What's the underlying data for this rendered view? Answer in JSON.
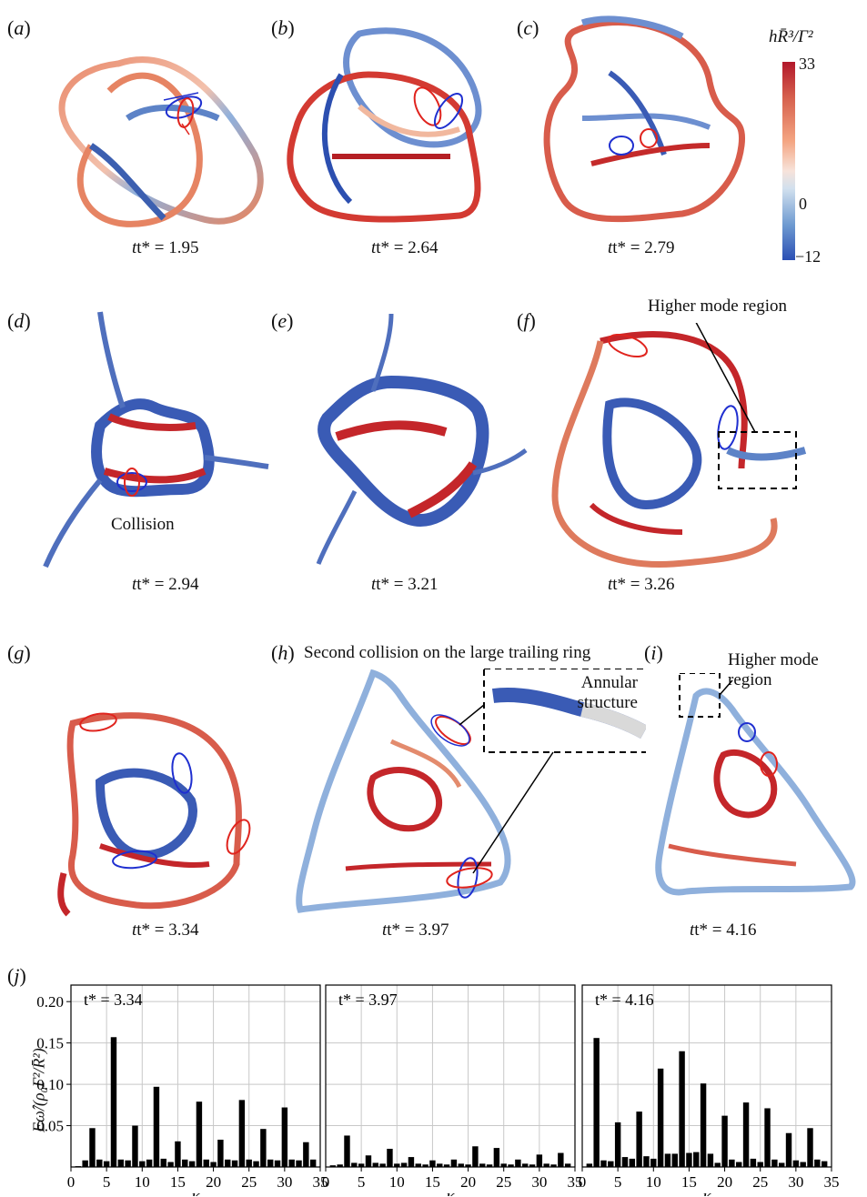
{
  "colorbar": {
    "title": "hR̄³/Γ²",
    "max": "33",
    "mid": "0",
    "min": "−12",
    "colors": [
      "#b2182b",
      "#f4a582",
      "#f7e3da",
      "#6f9bd1",
      "#2b4fb4"
    ]
  },
  "panels": [
    {
      "label": "a",
      "time": "1.95"
    },
    {
      "label": "b",
      "time": "2.64"
    },
    {
      "label": "c",
      "time": "2.79"
    },
    {
      "label": "d",
      "time": "2.94"
    },
    {
      "label": "e",
      "time": "3.21"
    },
    {
      "label": "f",
      "time": "3.26"
    },
    {
      "label": "g",
      "time": "3.34"
    },
    {
      "label": "h",
      "time": "3.97"
    },
    {
      "label": "i",
      "time": "4.16"
    }
  ],
  "time_prefix": "t* = ",
  "annotations": {
    "collision": "Collision",
    "higher_mode_f": "Higher mode region",
    "second_collision": "Second collision on the large trailing ring",
    "annular": [
      "Annular",
      "structure"
    ],
    "higher_mode_i": [
      "Higher mode",
      "region"
    ]
  },
  "spectra_label": "j",
  "chart_data": [
    {
      "type": "bar",
      "title": "t* = 3.34",
      "xlabel": "κ",
      "ylabel": "Eω̂/(ρ₀Γ²/R̄²)",
      "xlim": [
        0,
        35
      ],
      "ylim": [
        0,
        0.22
      ],
      "xticks": [
        0,
        5,
        10,
        15,
        20,
        25,
        30,
        35
      ],
      "yticks": [
        0.05,
        0.1,
        0.15,
        0.2
      ],
      "ytick_labels": [
        "0.05",
        "0.10",
        "0.15",
        "0.20"
      ],
      "grid": true,
      "x": [
        1,
        2,
        3,
        4,
        5,
        6,
        7,
        8,
        9,
        10,
        11,
        12,
        13,
        14,
        15,
        16,
        17,
        18,
        19,
        20,
        21,
        22,
        23,
        24,
        25,
        26,
        27,
        28,
        29,
        30,
        31,
        32,
        33,
        34
      ],
      "values": [
        0.001,
        0.008,
        0.047,
        0.009,
        0.007,
        0.157,
        0.009,
        0.008,
        0.05,
        0.007,
        0.009,
        0.097,
        0.01,
        0.006,
        0.031,
        0.009,
        0.007,
        0.079,
        0.009,
        0.006,
        0.033,
        0.009,
        0.008,
        0.081,
        0.009,
        0.007,
        0.046,
        0.009,
        0.008,
        0.072,
        0.009,
        0.008,
        0.03,
        0.009
      ]
    },
    {
      "type": "bar",
      "title": "t* = 3.97",
      "xlabel": "κ",
      "xlim": [
        0,
        35
      ],
      "ylim": [
        0,
        0.22
      ],
      "xticks": [
        0,
        5,
        10,
        15,
        20,
        25,
        30,
        35
      ],
      "grid": true,
      "x": [
        1,
        2,
        3,
        4,
        5,
        6,
        7,
        8,
        9,
        10,
        11,
        12,
        13,
        14,
        15,
        16,
        17,
        18,
        19,
        20,
        21,
        22,
        23,
        24,
        25,
        26,
        27,
        28,
        29,
        30,
        31,
        32,
        33,
        34
      ],
      "values": [
        0.002,
        0.003,
        0.038,
        0.005,
        0.004,
        0.014,
        0.005,
        0.004,
        0.022,
        0.004,
        0.005,
        0.012,
        0.004,
        0.003,
        0.008,
        0.004,
        0.003,
        0.009,
        0.004,
        0.003,
        0.025,
        0.004,
        0.003,
        0.023,
        0.004,
        0.003,
        0.009,
        0.004,
        0.003,
        0.015,
        0.004,
        0.003,
        0.017,
        0.004
      ]
    },
    {
      "type": "bar",
      "title": "t* = 4.16",
      "xlabel": "κ",
      "xlim": [
        0,
        35
      ],
      "ylim": [
        0,
        0.22
      ],
      "xticks": [
        0,
        5,
        10,
        15,
        20,
        25,
        30,
        35
      ],
      "grid": true,
      "x": [
        1,
        2,
        3,
        4,
        5,
        6,
        7,
        8,
        9,
        10,
        11,
        12,
        13,
        14,
        15,
        16,
        17,
        18,
        19,
        20,
        21,
        22,
        23,
        24,
        25,
        26,
        27,
        28,
        29,
        30,
        31,
        32,
        33,
        34
      ],
      "values": [
        0.004,
        0.156,
        0.008,
        0.007,
        0.054,
        0.012,
        0.01,
        0.067,
        0.013,
        0.01,
        0.119,
        0.016,
        0.016,
        0.14,
        0.017,
        0.018,
        0.101,
        0.016,
        0.005,
        0.062,
        0.009,
        0.006,
        0.078,
        0.01,
        0.006,
        0.071,
        0.009,
        0.005,
        0.041,
        0.008,
        0.006,
        0.047,
        0.009,
        0.007
      ]
    }
  ]
}
